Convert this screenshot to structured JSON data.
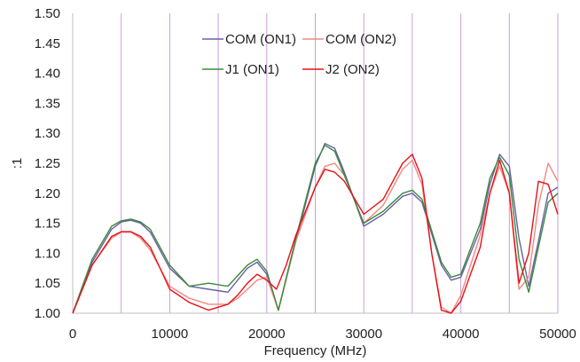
{
  "chart_data": {
    "type": "line",
    "title": "",
    "xlabel": "Frequency (MHz)",
    "ylabel": ":1",
    "xlim": [
      0,
      50000
    ],
    "ylim": [
      1.0,
      1.5
    ],
    "x_ticks": [
      0,
      10000,
      20000,
      30000,
      40000,
      50000
    ],
    "x_tick_labels": [
      "0",
      "10000",
      "20000",
      "30000",
      "40000",
      "50000"
    ],
    "y_ticks": [
      1.0,
      1.05,
      1.1,
      1.15,
      1.2,
      1.25,
      1.3,
      1.35,
      1.4,
      1.45,
      1.5
    ],
    "y_tick_labels": [
      "1.00",
      "1.05",
      "1.10",
      "1.15",
      "1.20",
      "1.25",
      "1.30",
      "1.35",
      "1.40",
      "1.45",
      "1.50"
    ],
    "vertical_gridlines": [
      5000,
      10000,
      15000,
      20000,
      25000,
      30000,
      35000,
      40000,
      45000,
      50000
    ],
    "gridline_color": "#c8a0d8",
    "legend_position": "top-center",
    "series": [
      {
        "name": "COM (ON1)",
        "color": "#6a5fa8",
        "x": [
          0,
          2000,
          4000,
          5000,
          6000,
          7000,
          8000,
          10000,
          12000,
          14000,
          16000,
          18000,
          19000,
          20000,
          21200,
          23000,
          25000,
          26000,
          27000,
          28000,
          30000,
          32000,
          34000,
          35000,
          36000,
          38000,
          39000,
          40000,
          42000,
          43000,
          44000,
          45000,
          46000,
          47000,
          48000,
          49000,
          50000
        ],
        "y": [
          1.0,
          1.085,
          1.14,
          1.152,
          1.155,
          1.15,
          1.135,
          1.075,
          1.045,
          1.04,
          1.035,
          1.075,
          1.085,
          1.065,
          1.005,
          1.12,
          1.245,
          1.283,
          1.275,
          1.235,
          1.145,
          1.165,
          1.195,
          1.2,
          1.185,
          1.08,
          1.055,
          1.06,
          1.14,
          1.215,
          1.265,
          1.245,
          1.125,
          1.045,
          1.12,
          1.2,
          1.21
        ]
      },
      {
        "name": "COM (ON2)",
        "color": "#f08a7e",
        "x": [
          0,
          2000,
          4000,
          5000,
          6000,
          7000,
          8000,
          10000,
          12000,
          14000,
          16000,
          17000,
          18000,
          19000,
          20000,
          21200,
          23000,
          25000,
          26000,
          27000,
          28000,
          30000,
          32000,
          34000,
          35000,
          36000,
          37000,
          38000,
          39000,
          40000,
          42000,
          43000,
          44000,
          45000,
          46000,
          47000,
          48000,
          49000,
          50000
        ],
        "y": [
          1.0,
          1.08,
          1.125,
          1.135,
          1.135,
          1.125,
          1.105,
          1.045,
          1.025,
          1.015,
          1.015,
          1.025,
          1.04,
          1.055,
          1.06,
          1.005,
          1.12,
          1.21,
          1.245,
          1.25,
          1.23,
          1.15,
          1.18,
          1.24,
          1.255,
          1.215,
          1.1,
          1.01,
          1.0,
          1.03,
          1.13,
          1.2,
          1.245,
          1.2,
          1.04,
          1.06,
          1.18,
          1.25,
          1.22
        ]
      },
      {
        "name": "J1 (ON1)",
        "color": "#3a8a3a",
        "x": [
          0,
          2000,
          4000,
          5000,
          6000,
          7000,
          8000,
          10000,
          12000,
          14000,
          16000,
          18000,
          19000,
          20000,
          21200,
          23000,
          25000,
          26000,
          27000,
          28000,
          30000,
          32000,
          34000,
          35000,
          36000,
          38000,
          39000,
          40000,
          42000,
          43000,
          44000,
          45000,
          46000,
          47000,
          48000,
          49000,
          50000
        ],
        "y": [
          1.0,
          1.09,
          1.145,
          1.154,
          1.157,
          1.152,
          1.14,
          1.08,
          1.045,
          1.05,
          1.045,
          1.08,
          1.09,
          1.07,
          1.005,
          1.125,
          1.25,
          1.28,
          1.27,
          1.23,
          1.15,
          1.17,
          1.2,
          1.205,
          1.19,
          1.085,
          1.06,
          1.065,
          1.15,
          1.225,
          1.26,
          1.23,
          1.09,
          1.035,
          1.11,
          1.185,
          1.2
        ]
      },
      {
        "name": "J2 (ON2)",
        "color": "#e8101a",
        "x": [
          0,
          2000,
          4000,
          5000,
          6000,
          7000,
          8000,
          10000,
          12000,
          14000,
          16000,
          17000,
          18000,
          19000,
          20000,
          21000,
          22000,
          23000,
          25000,
          26000,
          27000,
          28000,
          30000,
          32000,
          34000,
          35000,
          36000,
          37000,
          38000,
          39000,
          40000,
          42000,
          43000,
          44000,
          45000,
          46000,
          47000,
          48000,
          49000,
          50000
        ],
        "y": [
          1.0,
          1.08,
          1.128,
          1.136,
          1.136,
          1.128,
          1.11,
          1.04,
          1.018,
          1.005,
          1.015,
          1.03,
          1.05,
          1.065,
          1.055,
          1.04,
          1.08,
          1.13,
          1.21,
          1.24,
          1.235,
          1.22,
          1.165,
          1.19,
          1.25,
          1.265,
          1.225,
          1.1,
          1.005,
          1.0,
          1.02,
          1.11,
          1.2,
          1.255,
          1.2,
          1.05,
          1.1,
          1.22,
          1.215,
          1.165
        ]
      }
    ]
  }
}
